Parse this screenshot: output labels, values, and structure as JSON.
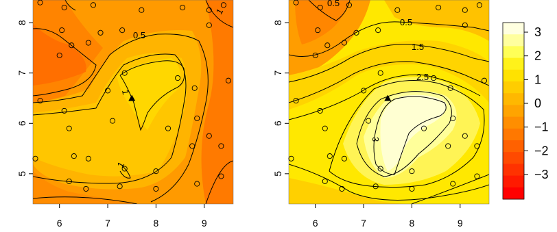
{
  "chart_data": [
    {
      "type": "heatmap",
      "panel": "left",
      "title": "",
      "xlabel": "",
      "ylabel": "",
      "xlim": [
        5.45,
        9.6
      ],
      "ylim": [
        4.4,
        8.45
      ],
      "x_ticks": [
        6,
        7,
        8,
        9
      ],
      "y_ticks": [
        5,
        6,
        7,
        8
      ],
      "contour_labels": [
        "1",
        "0.5",
        "1",
        "1"
      ],
      "triangle_marker": [
        7.5,
        6.5
      ]
    },
    {
      "type": "heatmap",
      "panel": "right",
      "title": "",
      "xlabel": "",
      "ylabel": "",
      "xlim": [
        5.45,
        9.6
      ],
      "ylim": [
        4.4,
        8.45
      ],
      "x_ticks": [
        6,
        7,
        8,
        9
      ],
      "y_ticks": [
        5,
        6,
        7,
        8
      ],
      "contour_labels": [
        "0.5",
        "0.5",
        "1.5",
        "2.5",
        "3"
      ],
      "triangle_marker": [
        7.5,
        6.5
      ]
    }
  ],
  "sample_points": [
    [
      5.6,
      8.4
    ],
    [
      6.1,
      8.3
    ],
    [
      6.7,
      8.35
    ],
    [
      7.7,
      8.25
    ],
    [
      8.55,
      8.3
    ],
    [
      9.1,
      8.25
    ],
    [
      9.4,
      8.35
    ],
    [
      6.05,
      7.85
    ],
    [
      6.25,
      7.55
    ],
    [
      6.0,
      7.35
    ],
    [
      6.6,
      7.6
    ],
    [
      6.85,
      7.8
    ],
    [
      7.3,
      7.85
    ],
    [
      9.1,
      7.95
    ],
    [
      7.35,
      7.0
    ],
    [
      7.0,
      6.65
    ],
    [
      8.45,
      6.9
    ],
    [
      8.8,
      6.7
    ],
    [
      9.5,
      6.85
    ],
    [
      5.6,
      6.45
    ],
    [
      6.1,
      6.25
    ],
    [
      7.1,
      6.05
    ],
    [
      8.25,
      5.9
    ],
    [
      8.85,
      6.1
    ],
    [
      9.1,
      5.75
    ],
    [
      6.2,
      5.9
    ],
    [
      8.75,
      5.55
    ],
    [
      9.35,
      5.55
    ],
    [
      5.5,
      5.3
    ],
    [
      6.3,
      5.35
    ],
    [
      6.6,
      5.3
    ],
    [
      6.2,
      4.85
    ],
    [
      6.55,
      4.7
    ],
    [
      7.25,
      4.75
    ],
    [
      7.35,
      5.1
    ],
    [
      8.0,
      5.05
    ],
    [
      8.0,
      4.7
    ],
    [
      8.85,
      4.8
    ],
    [
      9.35,
      4.95
    ]
  ],
  "legend": {
    "labels": [
      "3",
      "2",
      "1",
      "0",
      "−1",
      "−2",
      "−3"
    ],
    "colors": [
      "#ffffe0",
      "#ffff9e",
      "#ffff57",
      "#fff21a",
      "#ffe200",
      "#ffcd00",
      "#ffb800",
      "#ffa400",
      "#ff8e00",
      "#ff7800",
      "#ff6100",
      "#ff4a00",
      "#ff3200",
      "#ff1a00",
      "#ff0000"
    ]
  }
}
